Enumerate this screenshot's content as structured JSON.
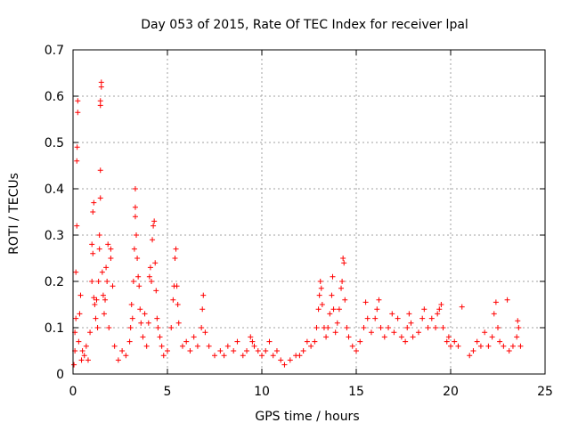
{
  "chart_data": {
    "type": "scatter",
    "title": "Day 053 of 2015, Rate Of TEC Index for receiver lpal",
    "xlabel": "GPS time / hours",
    "ylabel": "ROTI / TECUs",
    "xlim": [
      0,
      25
    ],
    "ylim": [
      0,
      0.7
    ],
    "xticks": [
      0,
      5,
      10,
      15,
      20,
      25
    ],
    "yticks": [
      0,
      0.1,
      0.2,
      0.3,
      0.4,
      0.5,
      0.6,
      0.7
    ],
    "grid": true,
    "marker": "+",
    "colors": {
      "points": "#ff0000",
      "grid": "#a0a0a0",
      "axes": "#000000"
    },
    "series": [
      {
        "name": "ROTI",
        "points": [
          [
            0.05,
            0.02
          ],
          [
            0.1,
            0.05
          ],
          [
            0.1,
            0.09
          ],
          [
            0.15,
            0.12
          ],
          [
            0.15,
            0.22
          ],
          [
            0.2,
            0.32
          ],
          [
            0.2,
            0.46
          ],
          [
            0.22,
            0.49
          ],
          [
            0.25,
            0.565
          ],
          [
            0.25,
            0.59
          ],
          [
            0.3,
            0.07
          ],
          [
            0.35,
            0.13
          ],
          [
            0.4,
            0.17
          ],
          [
            0.45,
            0.03
          ],
          [
            0.5,
            0.05
          ],
          [
            0.6,
            0.04
          ],
          [
            0.7,
            0.06
          ],
          [
            0.8,
            0.03
          ],
          [
            0.9,
            0.09
          ],
          [
            1.0,
            0.2
          ],
          [
            1.05,
            0.26
          ],
          [
            1.0,
            0.28
          ],
          [
            1.05,
            0.35
          ],
          [
            1.1,
            0.37
          ],
          [
            1.1,
            0.165
          ],
          [
            1.15,
            0.15
          ],
          [
            1.2,
            0.12
          ],
          [
            1.25,
            0.16
          ],
          [
            1.3,
            0.1
          ],
          [
            1.35,
            0.2
          ],
          [
            1.4,
            0.27
          ],
          [
            1.4,
            0.3
          ],
          [
            1.45,
            0.38
          ],
          [
            1.45,
            0.44
          ],
          [
            1.45,
            0.58
          ],
          [
            1.45,
            0.59
          ],
          [
            1.5,
            0.62
          ],
          [
            1.5,
            0.63
          ],
          [
            1.55,
            0.22
          ],
          [
            1.6,
            0.17
          ],
          [
            1.65,
            0.13
          ],
          [
            1.7,
            0.16
          ],
          [
            1.75,
            0.23
          ],
          [
            1.8,
            0.2
          ],
          [
            1.85,
            0.28
          ],
          [
            1.9,
            0.1
          ],
          [
            2.0,
            0.25
          ],
          [
            2.0,
            0.27
          ],
          [
            2.1,
            0.19
          ],
          [
            2.2,
            0.06
          ],
          [
            2.4,
            0.03
          ],
          [
            2.6,
            0.05
          ],
          [
            2.8,
            0.04
          ],
          [
            3.0,
            0.07
          ],
          [
            3.05,
            0.1
          ],
          [
            3.1,
            0.15
          ],
          [
            3.15,
            0.12
          ],
          [
            3.2,
            0.2
          ],
          [
            3.25,
            0.27
          ],
          [
            3.3,
            0.34
          ],
          [
            3.3,
            0.36
          ],
          [
            3.3,
            0.4
          ],
          [
            3.35,
            0.3
          ],
          [
            3.4,
            0.25
          ],
          [
            3.45,
            0.21
          ],
          [
            3.5,
            0.19
          ],
          [
            3.55,
            0.14
          ],
          [
            3.6,
            0.11
          ],
          [
            3.7,
            0.08
          ],
          [
            3.8,
            0.13
          ],
          [
            3.9,
            0.06
          ],
          [
            4.0,
            0.11
          ],
          [
            4.05,
            0.21
          ],
          [
            4.1,
            0.23
          ],
          [
            4.15,
            0.2
          ],
          [
            4.2,
            0.29
          ],
          [
            4.25,
            0.32
          ],
          [
            4.3,
            0.33
          ],
          [
            4.35,
            0.24
          ],
          [
            4.4,
            0.18
          ],
          [
            4.45,
            0.12
          ],
          [
            4.5,
            0.1
          ],
          [
            4.6,
            0.08
          ],
          [
            4.7,
            0.06
          ],
          [
            4.8,
            0.04
          ],
          [
            5.0,
            0.05
          ],
          [
            5.2,
            0.1
          ],
          [
            5.3,
            0.16
          ],
          [
            5.35,
            0.19
          ],
          [
            5.4,
            0.25
          ],
          [
            5.45,
            0.27
          ],
          [
            5.5,
            0.19
          ],
          [
            5.55,
            0.15
          ],
          [
            5.6,
            0.11
          ],
          [
            5.8,
            0.06
          ],
          [
            6.0,
            0.07
          ],
          [
            6.2,
            0.05
          ],
          [
            6.4,
            0.08
          ],
          [
            6.6,
            0.06
          ],
          [
            6.8,
            0.1
          ],
          [
            6.85,
            0.14
          ],
          [
            6.9,
            0.17
          ],
          [
            7.0,
            0.09
          ],
          [
            7.2,
            0.06
          ],
          [
            7.5,
            0.04
          ],
          [
            7.8,
            0.05
          ],
          [
            8.0,
            0.04
          ],
          [
            8.2,
            0.06
          ],
          [
            8.5,
            0.05
          ],
          [
            8.7,
            0.07
          ],
          [
            9.0,
            0.04
          ],
          [
            9.2,
            0.05
          ],
          [
            9.4,
            0.08
          ],
          [
            9.5,
            0.07
          ],
          [
            9.6,
            0.06
          ],
          [
            9.8,
            0.05
          ],
          [
            10.0,
            0.04
          ],
          [
            10.2,
            0.05
          ],
          [
            10.4,
            0.07
          ],
          [
            10.6,
            0.04
          ],
          [
            10.8,
            0.05
          ],
          [
            11.0,
            0.03
          ],
          [
            11.2,
            0.02
          ],
          [
            11.5,
            0.03
          ],
          [
            11.8,
            0.04
          ],
          [
            12.0,
            0.04
          ],
          [
            12.2,
            0.05
          ],
          [
            12.4,
            0.07
          ],
          [
            12.6,
            0.06
          ],
          [
            12.8,
            0.07
          ],
          [
            12.9,
            0.1
          ],
          [
            13.0,
            0.14
          ],
          [
            13.05,
            0.17
          ],
          [
            13.1,
            0.2
          ],
          [
            13.15,
            0.185
          ],
          [
            13.2,
            0.15
          ],
          [
            13.3,
            0.1
          ],
          [
            13.4,
            0.08
          ],
          [
            13.5,
            0.1
          ],
          [
            13.6,
            0.13
          ],
          [
            13.7,
            0.17
          ],
          [
            13.75,
            0.21
          ],
          [
            13.8,
            0.14
          ],
          [
            13.9,
            0.09
          ],
          [
            14.0,
            0.11
          ],
          [
            14.1,
            0.14
          ],
          [
            14.2,
            0.185
          ],
          [
            14.25,
            0.2
          ],
          [
            14.3,
            0.25
          ],
          [
            14.35,
            0.24
          ],
          [
            14.4,
            0.16
          ],
          [
            14.5,
            0.1
          ],
          [
            14.6,
            0.08
          ],
          [
            14.8,
            0.06
          ],
          [
            15.0,
            0.05
          ],
          [
            15.2,
            0.07
          ],
          [
            15.4,
            0.1
          ],
          [
            15.5,
            0.155
          ],
          [
            15.6,
            0.12
          ],
          [
            15.8,
            0.09
          ],
          [
            16.0,
            0.12
          ],
          [
            16.1,
            0.14
          ],
          [
            16.2,
            0.16
          ],
          [
            16.3,
            0.1
          ],
          [
            16.5,
            0.08
          ],
          [
            16.7,
            0.1
          ],
          [
            16.9,
            0.13
          ],
          [
            17.0,
            0.09
          ],
          [
            17.2,
            0.12
          ],
          [
            17.4,
            0.08
          ],
          [
            17.6,
            0.07
          ],
          [
            17.7,
            0.1
          ],
          [
            17.8,
            0.13
          ],
          [
            17.9,
            0.11
          ],
          [
            18.0,
            0.08
          ],
          [
            18.3,
            0.09
          ],
          [
            18.5,
            0.12
          ],
          [
            18.6,
            0.14
          ],
          [
            18.8,
            0.1
          ],
          [
            19.0,
            0.12
          ],
          [
            19.2,
            0.1
          ],
          [
            19.3,
            0.13
          ],
          [
            19.4,
            0.14
          ],
          [
            19.5,
            0.15
          ],
          [
            19.6,
            0.1
          ],
          [
            19.8,
            0.07
          ],
          [
            19.9,
            0.08
          ],
          [
            20.0,
            0.06
          ],
          [
            20.2,
            0.07
          ],
          [
            20.4,
            0.06
          ],
          [
            20.6,
            0.145
          ],
          [
            21.0,
            0.04
          ],
          [
            21.2,
            0.05
          ],
          [
            21.4,
            0.07
          ],
          [
            21.6,
            0.06
          ],
          [
            21.8,
            0.09
          ],
          [
            22.0,
            0.06
          ],
          [
            22.2,
            0.08
          ],
          [
            22.3,
            0.13
          ],
          [
            22.4,
            0.155
          ],
          [
            22.5,
            0.1
          ],
          [
            22.6,
            0.07
          ],
          [
            22.8,
            0.06
          ],
          [
            23.0,
            0.16
          ],
          [
            23.1,
            0.05
          ],
          [
            23.3,
            0.06
          ],
          [
            23.5,
            0.08
          ],
          [
            23.55,
            0.115
          ],
          [
            23.6,
            0.1
          ],
          [
            23.7,
            0.06
          ]
        ]
      }
    ]
  }
}
